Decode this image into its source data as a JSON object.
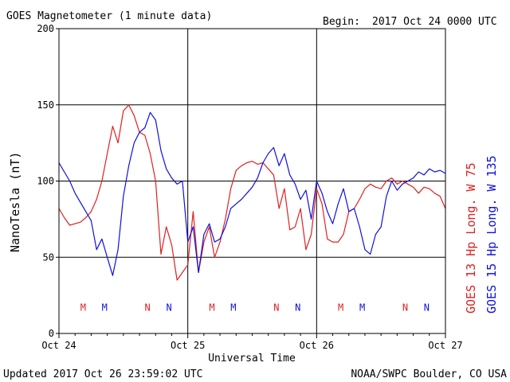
{
  "header": {
    "title": "GOES Magnetometer (1 minute data)",
    "begin_label": "Begin:",
    "begin_value": "2017 Oct 24 0000 UTC"
  },
  "footer": {
    "updated": "Updated 2017 Oct 26 23:59:02 UTC",
    "credit": "NOAA/SWPC Boulder, CO USA"
  },
  "colors": {
    "goes13": "#e02020",
    "goes15": "#1010e0"
  },
  "chart_data": {
    "type": "line",
    "xlabel": "Universal Time",
    "ylabel": "NanoTesla (nT)",
    "ylim": [
      0,
      200
    ],
    "yticks": [
      0,
      50,
      100,
      150,
      200
    ],
    "xlim": [
      0,
      72
    ],
    "xticks": [
      {
        "hour": 0,
        "label": "Oct 24"
      },
      {
        "hour": 24,
        "label": "Oct 25"
      },
      {
        "hour": 48,
        "label": "Oct 26"
      },
      {
        "hour": 72,
        "label": "Oct 27"
      }
    ],
    "grid": true,
    "series": [
      {
        "name": "GOES 13 Hp  Long. W 75",
        "color": "#e02020",
        "hours": [
          0,
          1,
          2,
          3,
          4,
          5,
          6,
          7,
          8,
          9,
          10,
          11,
          12,
          13,
          14,
          15,
          16,
          17,
          18,
          19,
          20,
          21,
          22,
          23,
          24,
          25,
          26,
          27,
          28,
          29,
          30,
          31,
          32,
          33,
          34,
          35,
          36,
          37,
          38,
          39,
          40,
          41,
          42,
          43,
          44,
          45,
          46,
          47,
          48,
          49,
          50,
          51,
          52,
          53,
          54,
          55,
          56,
          57,
          58,
          59,
          60,
          61,
          62,
          63,
          64,
          65,
          66,
          67,
          68,
          69,
          70,
          71,
          72
        ],
        "values": [
          82,
          76,
          71,
          72,
          73,
          76,
          80,
          88,
          100,
          118,
          136,
          125,
          146,
          150,
          143,
          132,
          130,
          118,
          100,
          52,
          70,
          58,
          35,
          40,
          45,
          80,
          40,
          60,
          70,
          50,
          60,
          75,
          95,
          107,
          110,
          112,
          113,
          111,
          112,
          108,
          104,
          82,
          95,
          68,
          70,
          82,
          55,
          65,
          95,
          85,
          62,
          60,
          60,
          65,
          80,
          82,
          88,
          95,
          98,
          96,
          95,
          100,
          102,
          98,
          100,
          98,
          96,
          92,
          96,
          95,
          92,
          90,
          82
        ]
      },
      {
        "name": "GOES 15 Hp  Long. W 135",
        "color": "#1010e0",
        "hours": [
          0,
          1,
          2,
          3,
          4,
          5,
          6,
          7,
          8,
          9,
          10,
          11,
          12,
          13,
          14,
          15,
          16,
          17,
          18,
          19,
          20,
          21,
          22,
          23,
          24,
          25,
          26,
          27,
          28,
          29,
          30,
          31,
          32,
          33,
          34,
          35,
          36,
          37,
          38,
          39,
          40,
          41,
          42,
          43,
          44,
          45,
          46,
          47,
          48,
          49,
          50,
          51,
          52,
          53,
          54,
          55,
          56,
          57,
          58,
          59,
          60,
          61,
          62,
          63,
          64,
          65,
          66,
          67,
          68,
          69,
          70,
          71,
          72
        ],
        "values": [
          112,
          106,
          100,
          92,
          86,
          80,
          74,
          55,
          62,
          50,
          38,
          55,
          90,
          110,
          125,
          132,
          135,
          145,
          140,
          120,
          108,
          102,
          98,
          100,
          60,
          70,
          40,
          65,
          72,
          60,
          62,
          70,
          82,
          85,
          88,
          92,
          96,
          102,
          112,
          118,
          122,
          110,
          118,
          104,
          98,
          88,
          94,
          75,
          100,
          92,
          80,
          72,
          85,
          95,
          80,
          82,
          70,
          55,
          52,
          65,
          70,
          90,
          100,
          94,
          98,
          100,
          102,
          106,
          104,
          108,
          106,
          107,
          105
        ]
      }
    ],
    "markers": [
      {
        "label": "M",
        "hour": 4.5,
        "color": "#e02020"
      },
      {
        "label": "M",
        "hour": 8.5,
        "color": "#1010e0"
      },
      {
        "label": "N",
        "hour": 16.5,
        "color": "#e02020"
      },
      {
        "label": "N",
        "hour": 20.5,
        "color": "#1010e0"
      },
      {
        "label": "M",
        "hour": 28.5,
        "color": "#e02020"
      },
      {
        "label": "M",
        "hour": 32.5,
        "color": "#1010e0"
      },
      {
        "label": "N",
        "hour": 40.5,
        "color": "#e02020"
      },
      {
        "label": "N",
        "hour": 44.5,
        "color": "#1010e0"
      },
      {
        "label": "M",
        "hour": 52.5,
        "color": "#e02020"
      },
      {
        "label": "M",
        "hour": 56.5,
        "color": "#1010e0"
      },
      {
        "label": "N",
        "hour": 64.5,
        "color": "#e02020"
      },
      {
        "label": "N",
        "hour": 68.5,
        "color": "#1010e0"
      }
    ],
    "marker_level": 17
  }
}
